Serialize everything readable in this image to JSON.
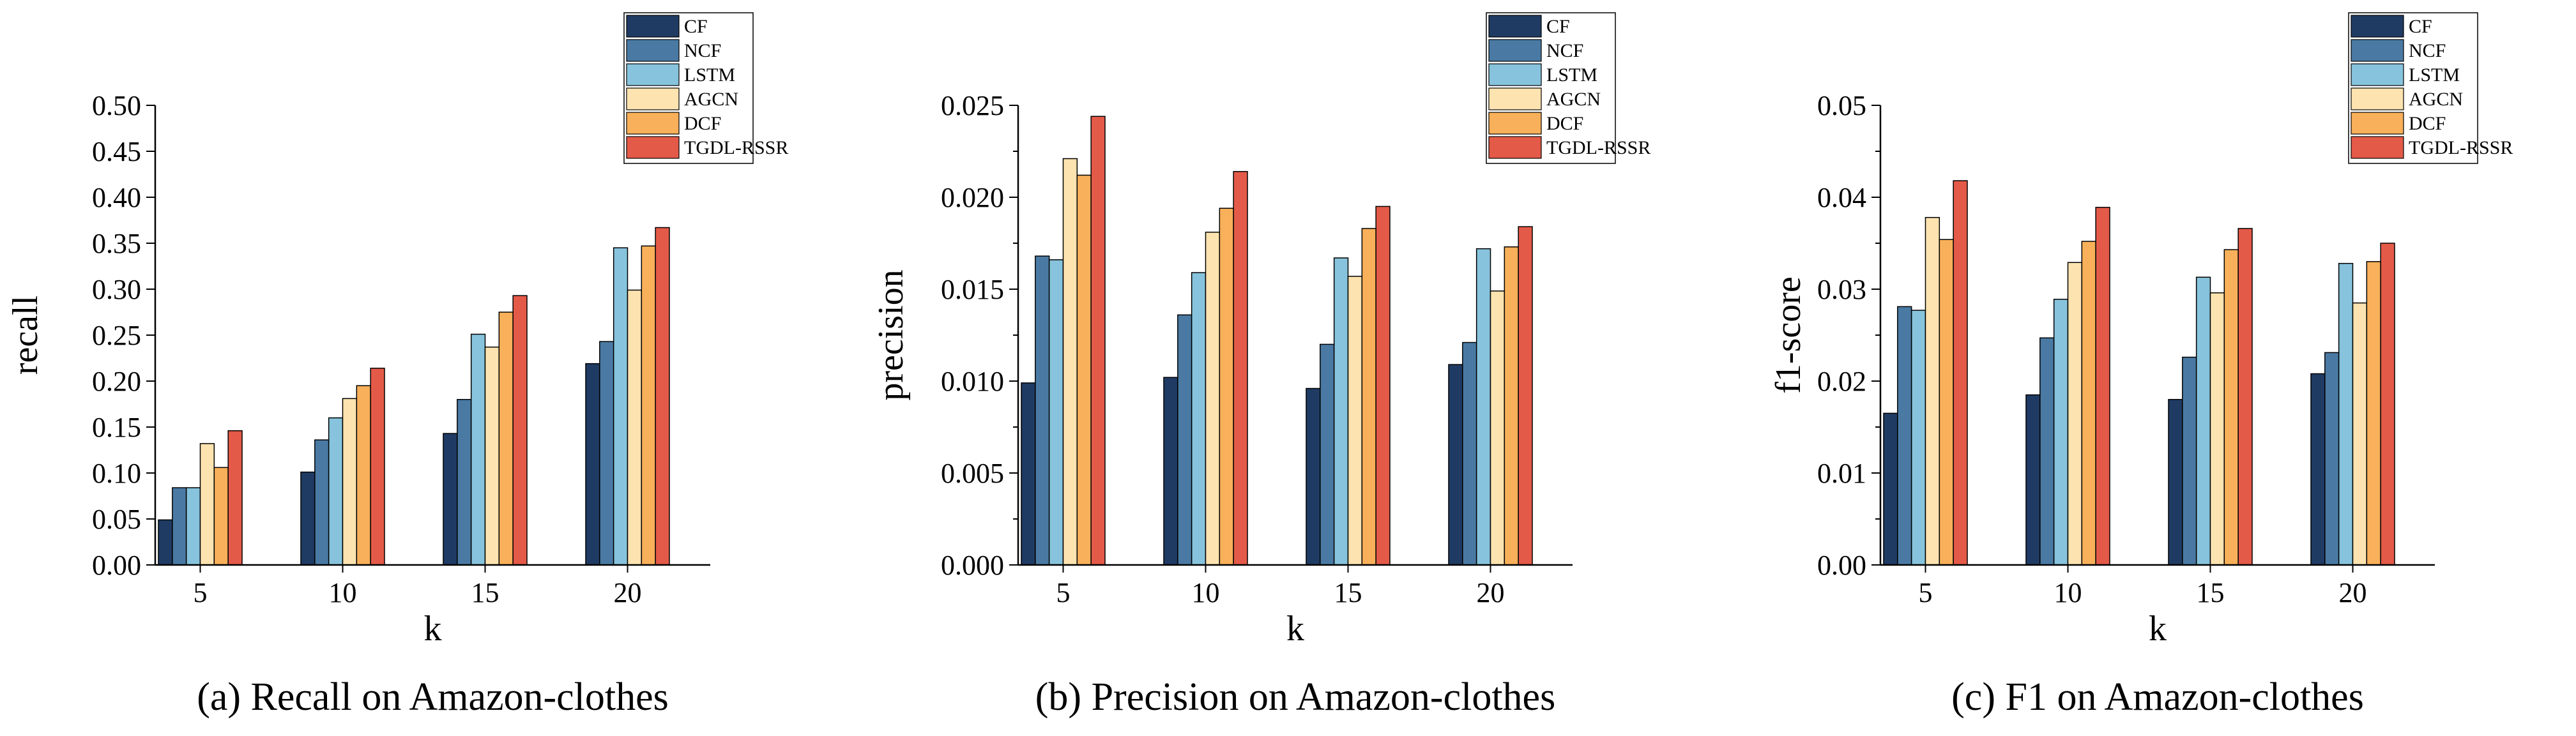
{
  "series_colors": [
    "#1f3b63",
    "#4a7aa3",
    "#87c3dc",
    "#fde3b0",
    "#f8b05a",
    "#e45a48"
  ],
  "chart_data": [
    {
      "type": "bar",
      "caption": "(a) Recall on Amazon-clothes",
      "xlabel": "k",
      "ylabel": "recall",
      "categories": [
        "5",
        "10",
        "15",
        "20"
      ],
      "ylim": [
        0,
        0.5
      ],
      "yticks": [
        "0.00",
        "0.05",
        "0.10",
        "0.15",
        "0.20",
        "0.25",
        "0.30",
        "0.35",
        "0.40",
        "0.45",
        "0.50"
      ],
      "series": [
        {
          "name": "CF",
          "values": [
            0.049,
            0.101,
            0.143,
            0.219
          ]
        },
        {
          "name": "NCF",
          "values": [
            0.084,
            0.136,
            0.18,
            0.243
          ]
        },
        {
          "name": "LSTM",
          "values": [
            0.084,
            0.16,
            0.251,
            0.345
          ]
        },
        {
          "name": "AGCN",
          "values": [
            0.132,
            0.181,
            0.237,
            0.299
          ]
        },
        {
          "name": "DCF",
          "values": [
            0.106,
            0.195,
            0.275,
            0.347
          ]
        },
        {
          "name": "TGDL-RSSR",
          "values": [
            0.146,
            0.214,
            0.293,
            0.367
          ]
        }
      ]
    },
    {
      "type": "bar",
      "caption": "(b) Precision on Amazon-clothes",
      "xlabel": "k",
      "ylabel": "precision",
      "categories": [
        "5",
        "10",
        "15",
        "20"
      ],
      "ylim": [
        0,
        0.025
      ],
      "yticks": [
        "0.000",
        "0.005",
        "0.010",
        "0.015",
        "0.020",
        "0.025"
      ],
      "series": [
        {
          "name": "CF",
          "values": [
            0.0099,
            0.0102,
            0.0096,
            0.0109
          ]
        },
        {
          "name": "NCF",
          "values": [
            0.0168,
            0.0136,
            0.012,
            0.0121
          ]
        },
        {
          "name": "LSTM",
          "values": [
            0.0166,
            0.0159,
            0.0167,
            0.0172
          ]
        },
        {
          "name": "AGCN",
          "values": [
            0.0221,
            0.0181,
            0.0157,
            0.0149
          ]
        },
        {
          "name": "DCF",
          "values": [
            0.0212,
            0.0194,
            0.0183,
            0.0173
          ]
        },
        {
          "name": "TGDL-RSSR",
          "values": [
            0.0244,
            0.0214,
            0.0195,
            0.0184
          ]
        }
      ]
    },
    {
      "type": "bar",
      "caption": "(c) F1 on Amazon-clothes",
      "xlabel": "k",
      "ylabel": "f1-score",
      "categories": [
        "5",
        "10",
        "15",
        "20"
      ],
      "ylim": [
        0,
        0.05
      ],
      "yticks": [
        "0.00",
        "0.01",
        "0.02",
        "0.03",
        "0.04",
        "0.05"
      ],
      "series": [
        {
          "name": "CF",
          "values": [
            0.0165,
            0.0185,
            0.018,
            0.0208
          ]
        },
        {
          "name": "NCF",
          "values": [
            0.0281,
            0.0247,
            0.0226,
            0.0231
          ]
        },
        {
          "name": "LSTM",
          "values": [
            0.0277,
            0.0289,
            0.0313,
            0.0328
          ]
        },
        {
          "name": "AGCN",
          "values": [
            0.0378,
            0.0329,
            0.0296,
            0.0285
          ]
        },
        {
          "name": "DCF",
          "values": [
            0.0354,
            0.0352,
            0.0343,
            0.033
          ]
        },
        {
          "name": "TGDL-RSSR",
          "values": [
            0.0418,
            0.0389,
            0.0366,
            0.035
          ]
        }
      ]
    }
  ]
}
